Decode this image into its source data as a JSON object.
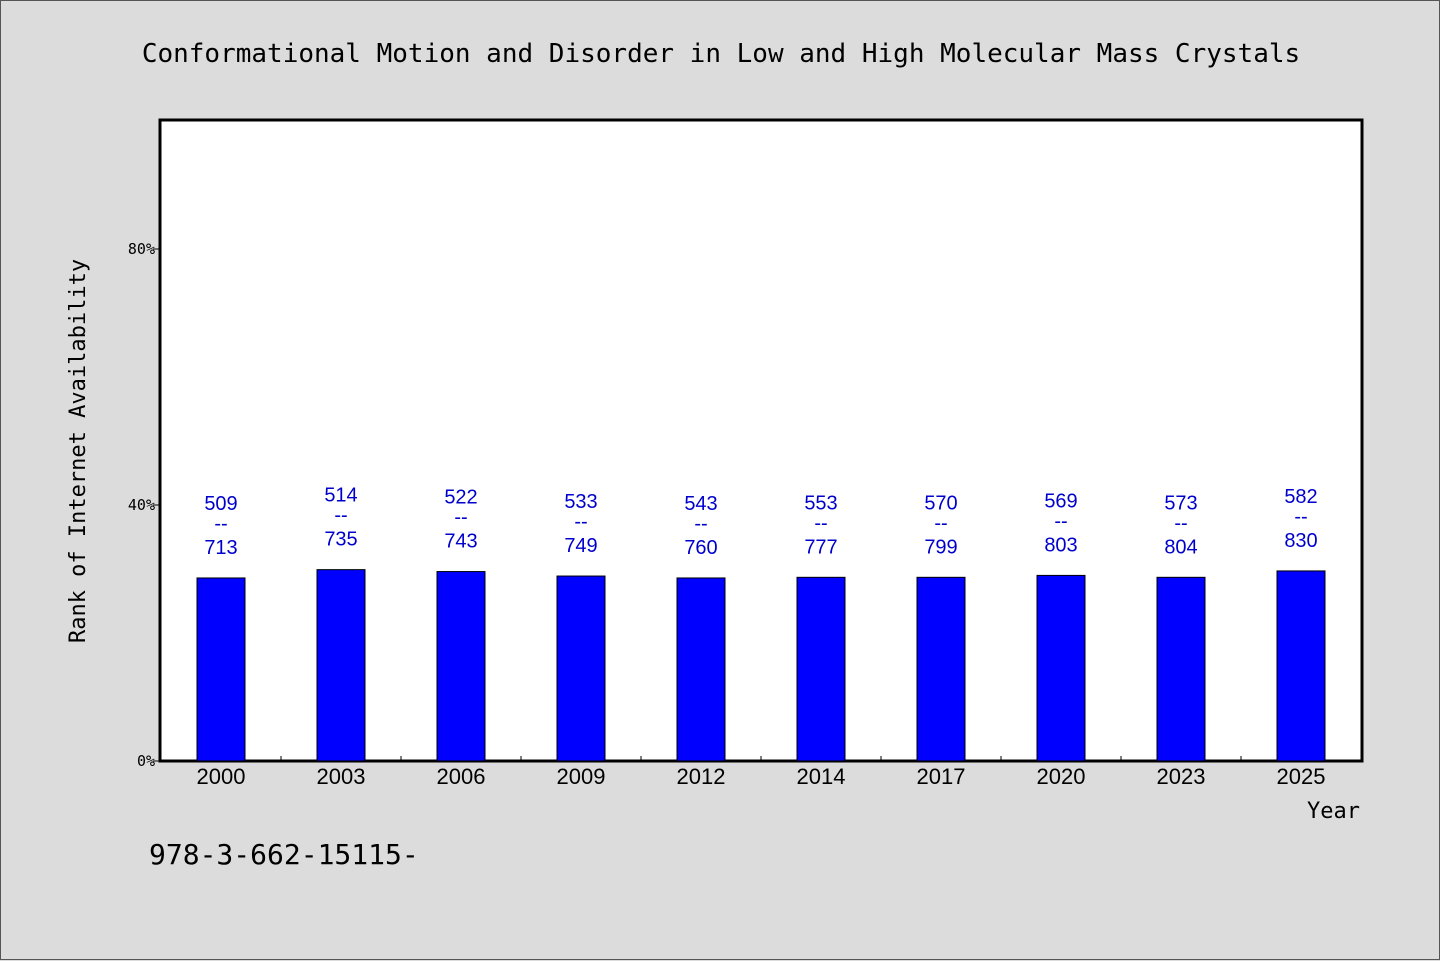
{
  "chart_data": {
    "type": "bar",
    "title": "Conformational Motion and Disorder in Low and High Molecular Mass Crystals",
    "xlabel": "Year",
    "ylabel": "Rank of Internet Availability",
    "categories": [
      "2000",
      "2003",
      "2006",
      "2009",
      "2012",
      "2014",
      "2017",
      "2020",
      "2023",
      "2025"
    ],
    "values": [
      28.6,
      29.9,
      29.6,
      28.9,
      28.6,
      28.7,
      28.7,
      29.0,
      28.7,
      29.7
    ],
    "bar_labels": [
      {
        "low": "509",
        "sep": "--",
        "high": "713"
      },
      {
        "low": "514",
        "sep": "--",
        "high": "735"
      },
      {
        "low": "522",
        "sep": "--",
        "high": "743"
      },
      {
        "low": "533",
        "sep": "--",
        "high": "749"
      },
      {
        "low": "543",
        "sep": "--",
        "high": "760"
      },
      {
        "low": "553",
        "sep": "--",
        "high": "777"
      },
      {
        "low": "570",
        "sep": "--",
        "high": "799"
      },
      {
        "low": "569",
        "sep": "--",
        "high": "803"
      },
      {
        "low": "573",
        "sep": "--",
        "high": "804"
      },
      {
        "low": "582",
        "sep": "--",
        "high": "830"
      }
    ],
    "ylim": [
      0,
      100
    ],
    "yticks": [
      0,
      40,
      80
    ],
    "ytick_labels": [
      "0%",
      "40%",
      "80%"
    ],
    "grid": false,
    "legend": "none",
    "colors": {
      "bar": "#0000ff",
      "bar_label": "#0000cc",
      "axis": "#000000",
      "plot_bg": "#ffffff",
      "page_bg": "#dcdcdc"
    }
  },
  "footnote": "978-3-662-15115-"
}
